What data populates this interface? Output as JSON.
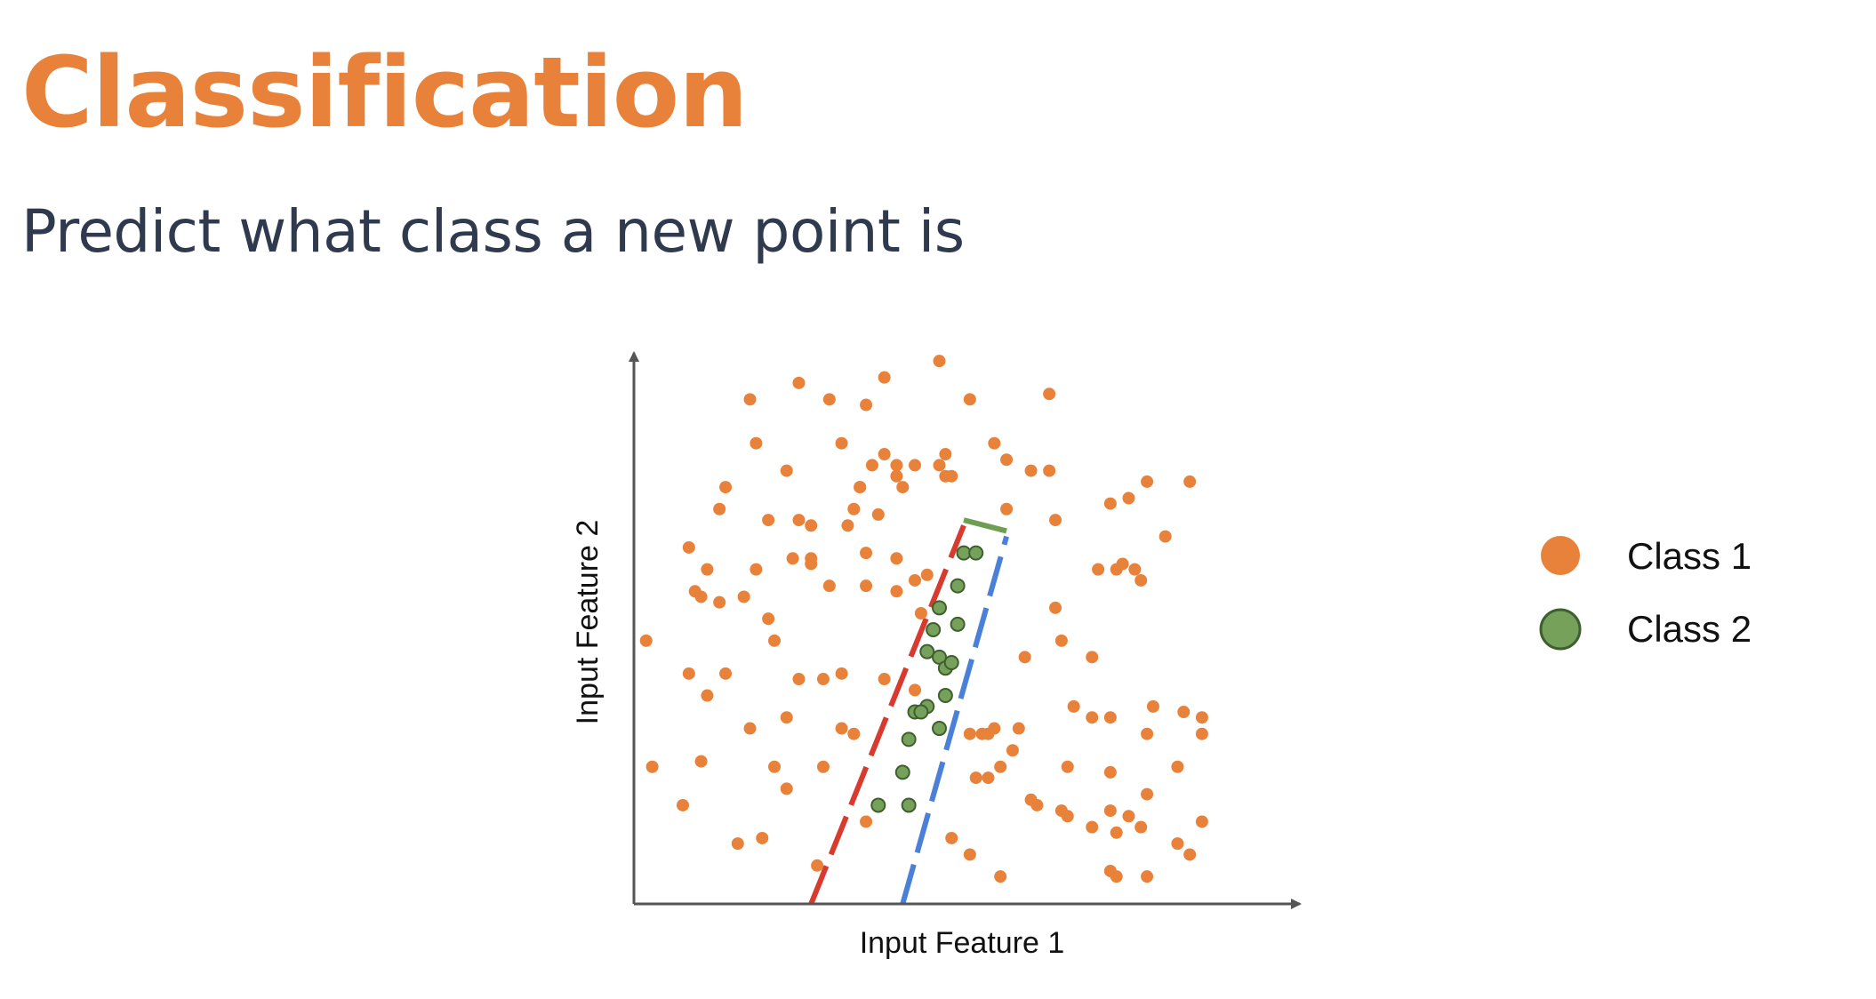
{
  "slide": {
    "title": "Classification",
    "subtitle": "Predict what class a new point is"
  },
  "colors": {
    "title": "#E8823B",
    "subtitle": "#2F3A4F",
    "class1": "#E8823B",
    "class2": "#76A15A",
    "class2_stroke": "#3F5F2E",
    "red_boundary": "#D93A2E",
    "blue_boundary": "#4A80D8",
    "green_segment": "#6E9E52",
    "axis": "#555555"
  },
  "chart_data": {
    "type": "scatter",
    "title": "",
    "xlabel": "Input Feature 1",
    "ylabel": "Input Feature 2",
    "xlim": [
      0,
      100
    ],
    "ylim": [
      0,
      100
    ],
    "grid": false,
    "legend_position": "right",
    "series": [
      {
        "name": "Class 1",
        "points": [
          [
            19,
            92
          ],
          [
            27,
            95
          ],
          [
            32,
            92
          ],
          [
            38,
            91
          ],
          [
            41,
            96
          ],
          [
            50,
            99
          ],
          [
            55,
            92
          ],
          [
            68,
            93
          ],
          [
            20,
            84
          ],
          [
            25,
            79
          ],
          [
            34,
            84
          ],
          [
            41,
            82
          ],
          [
            37,
            76
          ],
          [
            39,
            80
          ],
          [
            46,
            80
          ],
          [
            50,
            80
          ],
          [
            51,
            82
          ],
          [
            52,
            78
          ],
          [
            59,
            84
          ],
          [
            61,
            81
          ],
          [
            65,
            79
          ],
          [
            68,
            79
          ],
          [
            15,
            76
          ],
          [
            22,
            70
          ],
          [
            14,
            72
          ],
          [
            27,
            70
          ],
          [
            29,
            69
          ],
          [
            35,
            69
          ],
          [
            40,
            71
          ],
          [
            43,
            80
          ],
          [
            37,
            76
          ],
          [
            43,
            78
          ],
          [
            44,
            76
          ],
          [
            36,
            72
          ],
          [
            51,
            78
          ],
          [
            61,
            72
          ],
          [
            69,
            70
          ],
          [
            78,
            73
          ],
          [
            81,
            74
          ],
          [
            87,
            67
          ],
          [
            84,
            77
          ],
          [
            91,
            77
          ],
          [
            9,
            65
          ],
          [
            12,
            61
          ],
          [
            10,
            57
          ],
          [
            20,
            61
          ],
          [
            26,
            63
          ],
          [
            29,
            63
          ],
          [
            38,
            64
          ],
          [
            43,
            63
          ],
          [
            46,
            59
          ],
          [
            48,
            60
          ],
          [
            11,
            56
          ],
          [
            14,
            55
          ],
          [
            18,
            56
          ],
          [
            29,
            62
          ],
          [
            32,
            58
          ],
          [
            38,
            58
          ],
          [
            43,
            57
          ],
          [
            47,
            53
          ],
          [
            76,
            61
          ],
          [
            79,
            61
          ],
          [
            80,
            62
          ],
          [
            82,
            61
          ],
          [
            69,
            54
          ],
          [
            83,
            59
          ],
          [
            2,
            48
          ],
          [
            9,
            42
          ],
          [
            15,
            42
          ],
          [
            22,
            52
          ],
          [
            23,
            48
          ],
          [
            27,
            41
          ],
          [
            31,
            41
          ],
          [
            34,
            42
          ],
          [
            41,
            41
          ],
          [
            46,
            39
          ],
          [
            64,
            45
          ],
          [
            70,
            48
          ],
          [
            75,
            45
          ],
          [
            12,
            38
          ],
          [
            19,
            32
          ],
          [
            25,
            34
          ],
          [
            34,
            32
          ],
          [
            36,
            31
          ],
          [
            58,
            31
          ],
          [
            72,
            36
          ],
          [
            78,
            34
          ],
          [
            85,
            36
          ],
          [
            90,
            35
          ],
          [
            93,
            34
          ],
          [
            3,
            25
          ],
          [
            11,
            26
          ],
          [
            23,
            25
          ],
          [
            31,
            25
          ],
          [
            25,
            21
          ],
          [
            56,
            23
          ],
          [
            58,
            23
          ],
          [
            65,
            19
          ],
          [
            71,
            16
          ],
          [
            57,
            31
          ],
          [
            63,
            32
          ],
          [
            75,
            34
          ],
          [
            71,
            25
          ],
          [
            78,
            24
          ],
          [
            78,
            17
          ],
          [
            89,
            25
          ],
          [
            93,
            31
          ],
          [
            84,
            31
          ],
          [
            8,
            18
          ],
          [
            17,
            11
          ],
          [
            21,
            12
          ],
          [
            30,
            7
          ],
          [
            38,
            15
          ],
          [
            52,
            12
          ],
          [
            55,
            9
          ],
          [
            60,
            5
          ],
          [
            66,
            18
          ],
          [
            70,
            17
          ],
          [
            75,
            14
          ],
          [
            79,
            13
          ],
          [
            81,
            16
          ],
          [
            83,
            14
          ],
          [
            84,
            20
          ],
          [
            89,
            11
          ],
          [
            91,
            9
          ],
          [
            93,
            15
          ],
          [
            78,
            6
          ],
          [
            79,
            5
          ],
          [
            84,
            5
          ],
          [
            62,
            28
          ],
          [
            59,
            32
          ],
          [
            55,
            31
          ],
          [
            60,
            25
          ]
        ]
      },
      {
        "name": "Class 2",
        "points": [
          [
            54,
            64
          ],
          [
            56,
            64
          ],
          [
            53,
            58
          ],
          [
            50,
            54
          ],
          [
            53,
            51
          ],
          [
            49,
            50
          ],
          [
            48,
            46
          ],
          [
            50,
            45
          ],
          [
            51,
            43
          ],
          [
            52,
            44
          ],
          [
            51,
            38
          ],
          [
            48,
            36
          ],
          [
            46,
            35
          ],
          [
            47,
            35
          ],
          [
            50,
            32
          ],
          [
            45,
            30
          ],
          [
            44,
            24
          ],
          [
            40,
            18
          ],
          [
            45,
            18
          ]
        ]
      }
    ],
    "boundaries": [
      {
        "color": "red",
        "style": "dashed",
        "from": [
          29,
          0
        ],
        "to": [
          54,
          69
        ]
      },
      {
        "color": "blue",
        "style": "dashed",
        "from": [
          44,
          0
        ],
        "to": [
          61,
          67
        ]
      },
      {
        "color": "green",
        "style": "solid",
        "from": [
          54,
          70
        ],
        "to": [
          61,
          68
        ]
      }
    ]
  }
}
